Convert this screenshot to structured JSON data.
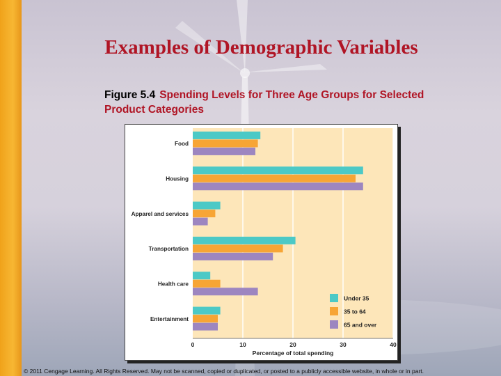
{
  "slide": {
    "title": "Examples of Demographic Variables",
    "figure_number": "Figure 5.4",
    "figure_caption": "Spending Levels for Three Age Groups for Selected Product Categories",
    "copyright": "© 2011 Cengage Learning. All Rights Reserved. May not be scanned, copied or duplicated, or posted to a publicly accessible website, in whole or in part."
  },
  "chart_data": {
    "type": "bar",
    "orientation": "horizontal",
    "categories": [
      "Food",
      "Housing",
      "Apparel and services",
      "Transportation",
      "Health care",
      "Entertainment"
    ],
    "series": [
      {
        "name": "Under 35",
        "color": "#4cc9c6",
        "values": [
          13.5,
          34.0,
          5.5,
          20.5,
          3.5,
          5.5
        ]
      },
      {
        "name": "35 to 64",
        "color": "#f7a535",
        "values": [
          13.0,
          32.5,
          4.5,
          18.0,
          5.5,
          5.0
        ]
      },
      {
        "name": "65 and over",
        "color": "#9d86c0",
        "values": [
          12.5,
          34.0,
          3.0,
          16.0,
          13.0,
          5.0
        ]
      }
    ],
    "xlabel": "Percentage of total spending",
    "xlim": [
      0,
      40
    ],
    "xticks": [
      0,
      10,
      20,
      30,
      40
    ],
    "legend_position": "bottom-right",
    "plot_background": "#fde6b9",
    "grid": true
  }
}
